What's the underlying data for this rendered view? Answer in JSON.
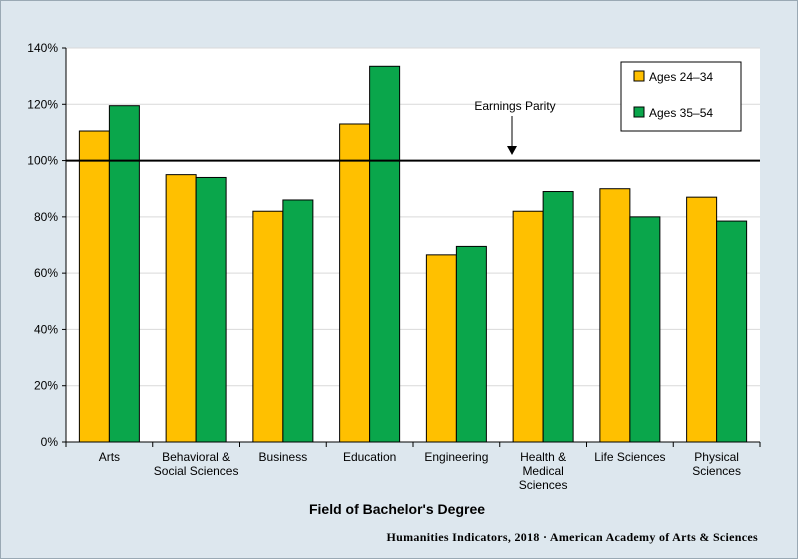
{
  "chart_data": {
    "type": "bar",
    "categories": [
      [
        "Arts"
      ],
      [
        "Behavioral &",
        "Social Sciences"
      ],
      [
        "Business"
      ],
      [
        "Education"
      ],
      [
        "Engineering"
      ],
      [
        "Health &",
        "Medical",
        "Sciences"
      ],
      [
        "Life Sciences"
      ],
      [
        "Physical",
        "Sciences"
      ]
    ],
    "series": [
      {
        "name": "Ages 24–34",
        "color": "#ffc000",
        "values": [
          110.5,
          95,
          82,
          113,
          66.5,
          82,
          90,
          87
        ]
      },
      {
        "name": "Ages 35–54",
        "color": "#0aa64b",
        "values": [
          119.5,
          94,
          86,
          133.5,
          69.5,
          89,
          80,
          78.5
        ]
      }
    ],
    "xlabel": "Field of Bachelor's Degree",
    "ylabel": "",
    "ylim": [
      0,
      140
    ],
    "yticks": [
      0,
      20,
      40,
      60,
      80,
      100,
      120,
      140
    ],
    "ytick_suffix": "%",
    "grid": true,
    "legend_position": "top-right",
    "reference_line": {
      "value": 100,
      "label": "Earnings Parity"
    }
  },
  "credit": "Humanities Indicators, 2018 · American Academy of Arts & Sciences"
}
